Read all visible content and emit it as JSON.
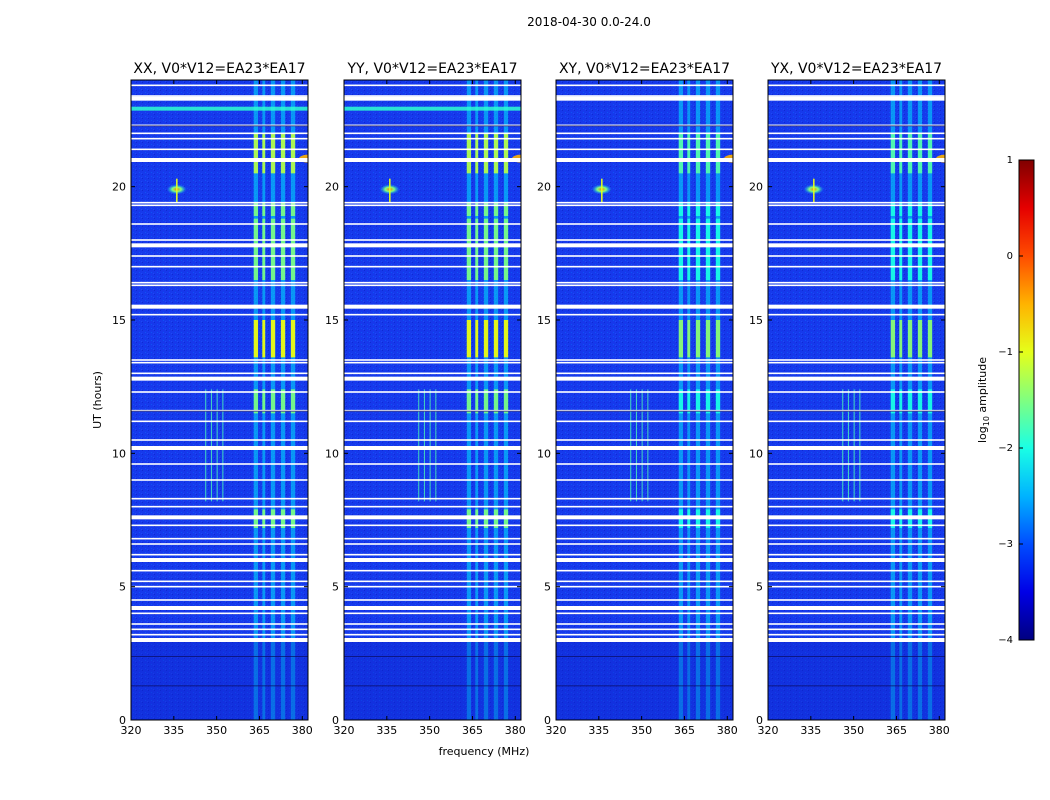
{
  "chart_data": {
    "type": "heatmap",
    "title": "2018-04-30 0.0-24.0",
    "xlabel": "frequency (MHz)",
    "ylabel": "UT (hours)",
    "xlim": [
      320,
      382
    ],
    "ylim": [
      0,
      24
    ],
    "xticks": [
      "320",
      "335",
      "350",
      "365",
      "380"
    ],
    "xtick_values": [
      320,
      335,
      350,
      365,
      380
    ],
    "yticks": [
      "0",
      "5",
      "10",
      "15",
      "20"
    ],
    "ytick_values": [
      0,
      5,
      10,
      15,
      20
    ],
    "panels": [
      {
        "title": "XX, V0*V12=EA23*EA17",
        "pol": "XX"
      },
      {
        "title": "YY, V0*V12=EA23*EA17",
        "pol": "YY"
      },
      {
        "title": "XY, V0*V12=EA23*EA17",
        "pol": "XY"
      },
      {
        "title": "YX, V0*V12=EA23*EA17",
        "pol": "YX"
      }
    ],
    "colorbar": {
      "label_prefix": "log",
      "label_sub": "10",
      "label_suffix": " amplitude",
      "range": [
        -4,
        1
      ],
      "ticks": [
        "1",
        "0",
        "−1",
        "−2",
        "−3",
        "−4"
      ],
      "tick_values": [
        1,
        0,
        -1,
        -2,
        -3,
        -4
      ],
      "colormap": "jet"
    },
    "flagged_ut_hours": [
      3.0,
      3.2,
      3.4,
      3.6,
      4.0,
      4.2,
      4.5,
      5.0,
      5.2,
      5.6,
      6.0,
      6.2,
      6.6,
      6.8,
      7.3,
      7.6,
      8.0,
      8.3,
      9.0,
      9.6,
      10.2,
      10.5,
      11.2,
      11.6,
      12.3,
      12.8,
      13.0,
      13.4,
      13.5,
      15.2,
      15.5,
      16.3,
      16.4,
      17.0,
      17.4,
      17.8,
      18.0,
      18.6,
      19.3,
      19.4,
      21.0,
      21.4,
      21.8,
      22.0,
      22.3,
      23.3,
      23.4,
      23.8
    ],
    "bright_band_mhz": [
      [
        363,
        364.5
      ],
      [
        366,
        367
      ],
      [
        369,
        370.5
      ],
      [
        372.5,
        374
      ],
      [
        376,
        377.5
      ]
    ]
  }
}
